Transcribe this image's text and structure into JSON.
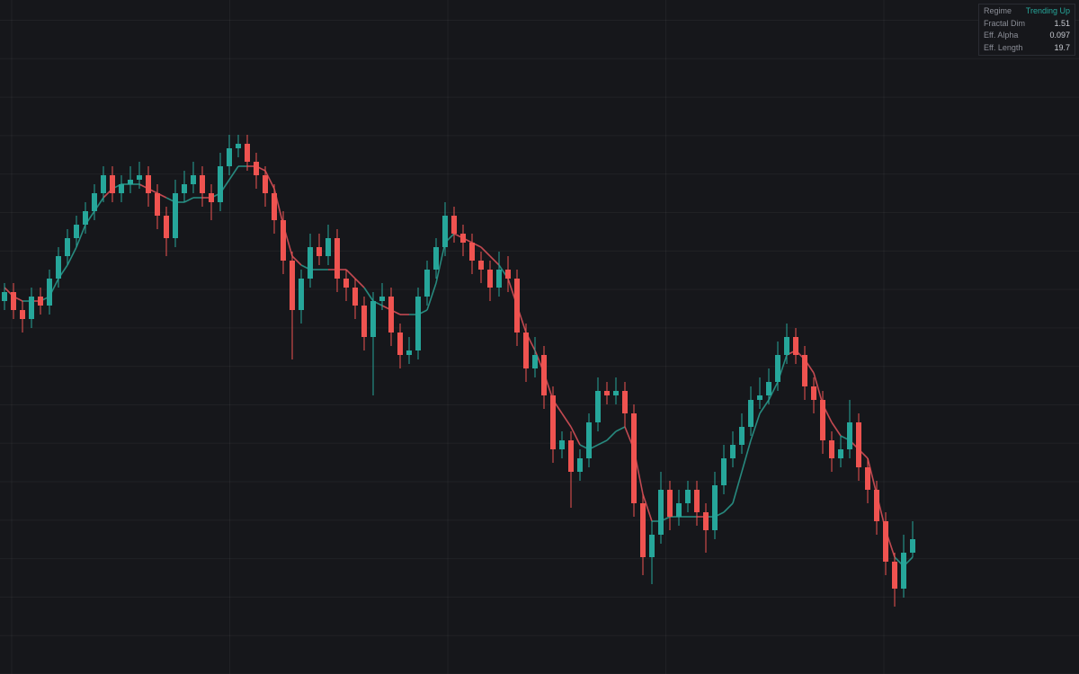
{
  "chart_data": {
    "type": "candlestick",
    "open": [
      83,
      85,
      81,
      79,
      84,
      82,
      88,
      93,
      97,
      100,
      103,
      107,
      111,
      107,
      109,
      110,
      111,
      107,
      102,
      97,
      107,
      109,
      111,
      107,
      105,
      113,
      117,
      118,
      114,
      111,
      107,
      101,
      92,
      81,
      88,
      95,
      93,
      97,
      88,
      86,
      82,
      75,
      83,
      84,
      76,
      71,
      72,
      84,
      90,
      95,
      102,
      98,
      96,
      92,
      90,
      86,
      90,
      88,
      76,
      68,
      71,
      62,
      50,
      52,
      45,
      48,
      56,
      63,
      62,
      63,
      58,
      38,
      26,
      31,
      41,
      35,
      38,
      41,
      36,
      32,
      42,
      48,
      51,
      55,
      61,
      62,
      65,
      71,
      75,
      71,
      64,
      61,
      52,
      48,
      50,
      56,
      46,
      41,
      34,
      25,
      19,
      27
    ],
    "high": [
      87,
      87,
      83,
      86,
      86,
      90,
      95,
      99,
      102,
      105,
      109,
      113,
      113,
      111,
      113,
      114,
      113,
      109,
      104,
      110,
      112,
      114,
      113,
      109,
      116,
      120,
      120,
      120,
      116,
      113,
      109,
      103,
      94,
      90,
      98,
      98,
      100,
      99,
      90,
      88,
      84,
      85,
      87,
      86,
      78,
      75,
      86,
      92,
      97,
      105,
      104,
      100,
      98,
      94,
      92,
      94,
      93,
      90,
      78,
      75,
      73,
      64,
      54,
      54,
      50,
      58,
      66,
      65,
      66,
      65,
      60,
      40,
      34,
      45,
      43,
      41,
      43,
      43,
      38,
      45,
      51,
      54,
      58,
      64,
      66,
      68,
      74,
      78,
      77,
      73,
      66,
      63,
      54,
      53,
      61,
      58,
      48,
      43,
      36,
      27,
      31,
      34
    ],
    "low": [
      81,
      79,
      76,
      77,
      80,
      80,
      86,
      91,
      95,
      98,
      101,
      105,
      105,
      105,
      107,
      108,
      104,
      99,
      93,
      95,
      105,
      107,
      104,
      101,
      103,
      111,
      115,
      112,
      108,
      104,
      98,
      89,
      70,
      78,
      86,
      91,
      91,
      85,
      83,
      79,
      72,
      62,
      81,
      73,
      68,
      69,
      70,
      82,
      88,
      93,
      96,
      93,
      89,
      87,
      83,
      84,
      85,
      73,
      65,
      66,
      59,
      47,
      48,
      37,
      43,
      46,
      54,
      60,
      60,
      55,
      35,
      22,
      20,
      29,
      32,
      33,
      36,
      33,
      27,
      30,
      40,
      46,
      49,
      53,
      59,
      60,
      63,
      69,
      69,
      61,
      58,
      49,
      45,
      46,
      48,
      43,
      38,
      31,
      22,
      15,
      17,
      26
    ],
    "close": [
      85,
      81,
      79,
      84,
      82,
      88,
      93,
      97,
      100,
      103,
      107,
      111,
      107,
      109,
      110,
      111,
      107,
      102,
      97,
      107,
      109,
      111,
      107,
      105,
      113,
      117,
      118,
      114,
      111,
      107,
      101,
      92,
      81,
      88,
      95,
      93,
      97,
      88,
      86,
      82,
      75,
      83,
      84,
      76,
      71,
      72,
      84,
      90,
      95,
      102,
      98,
      96,
      92,
      90,
      86,
      90,
      88,
      76,
      68,
      71,
      62,
      50,
      52,
      45,
      48,
      56,
      63,
      62,
      63,
      58,
      38,
      26,
      31,
      41,
      35,
      38,
      41,
      36,
      32,
      42,
      48,
      51,
      55,
      61,
      62,
      65,
      71,
      75,
      71,
      64,
      61,
      52,
      48,
      50,
      56,
      46,
      41,
      34,
      25,
      19,
      27,
      30
    ],
    "up_color": "#26a69a",
    "down_color": "#ef5350",
    "ylim": [
      0,
      150
    ],
    "ma": {
      "up_color": "#2a9d8f",
      "down_color": "#e0525a",
      "values": [
        86,
        84,
        83,
        83,
        83,
        84,
        88,
        91,
        95,
        100,
        103,
        106,
        108,
        109,
        109,
        109,
        108,
        107,
        106,
        105,
        105,
        106,
        106,
        106,
        107,
        110,
        113,
        113,
        113,
        112,
        108,
        100,
        93,
        91,
        90,
        90,
        90,
        90,
        90,
        88,
        86,
        83,
        82,
        81,
        80,
        80,
        80,
        81,
        87,
        96,
        98,
        97,
        96,
        95,
        93,
        91,
        88,
        82,
        76,
        72,
        67,
        61,
        58,
        55,
        51,
        50,
        51,
        52,
        54,
        55,
        50,
        40,
        34,
        34,
        35,
        35,
        35,
        35,
        35,
        35,
        36,
        38,
        45,
        52,
        58,
        61,
        65,
        71,
        72,
        70,
        67,
        60,
        56,
        53,
        52,
        50,
        48,
        40,
        32,
        26,
        24,
        26
      ]
    }
  },
  "panel": {
    "rows": [
      [
        "Regime",
        "Trending Up"
      ],
      [
        "Fractal Dim",
        1.51
      ],
      [
        "Eff. Alpha",
        0.097
      ],
      [
        "Eff. Length",
        19.7
      ]
    ]
  }
}
